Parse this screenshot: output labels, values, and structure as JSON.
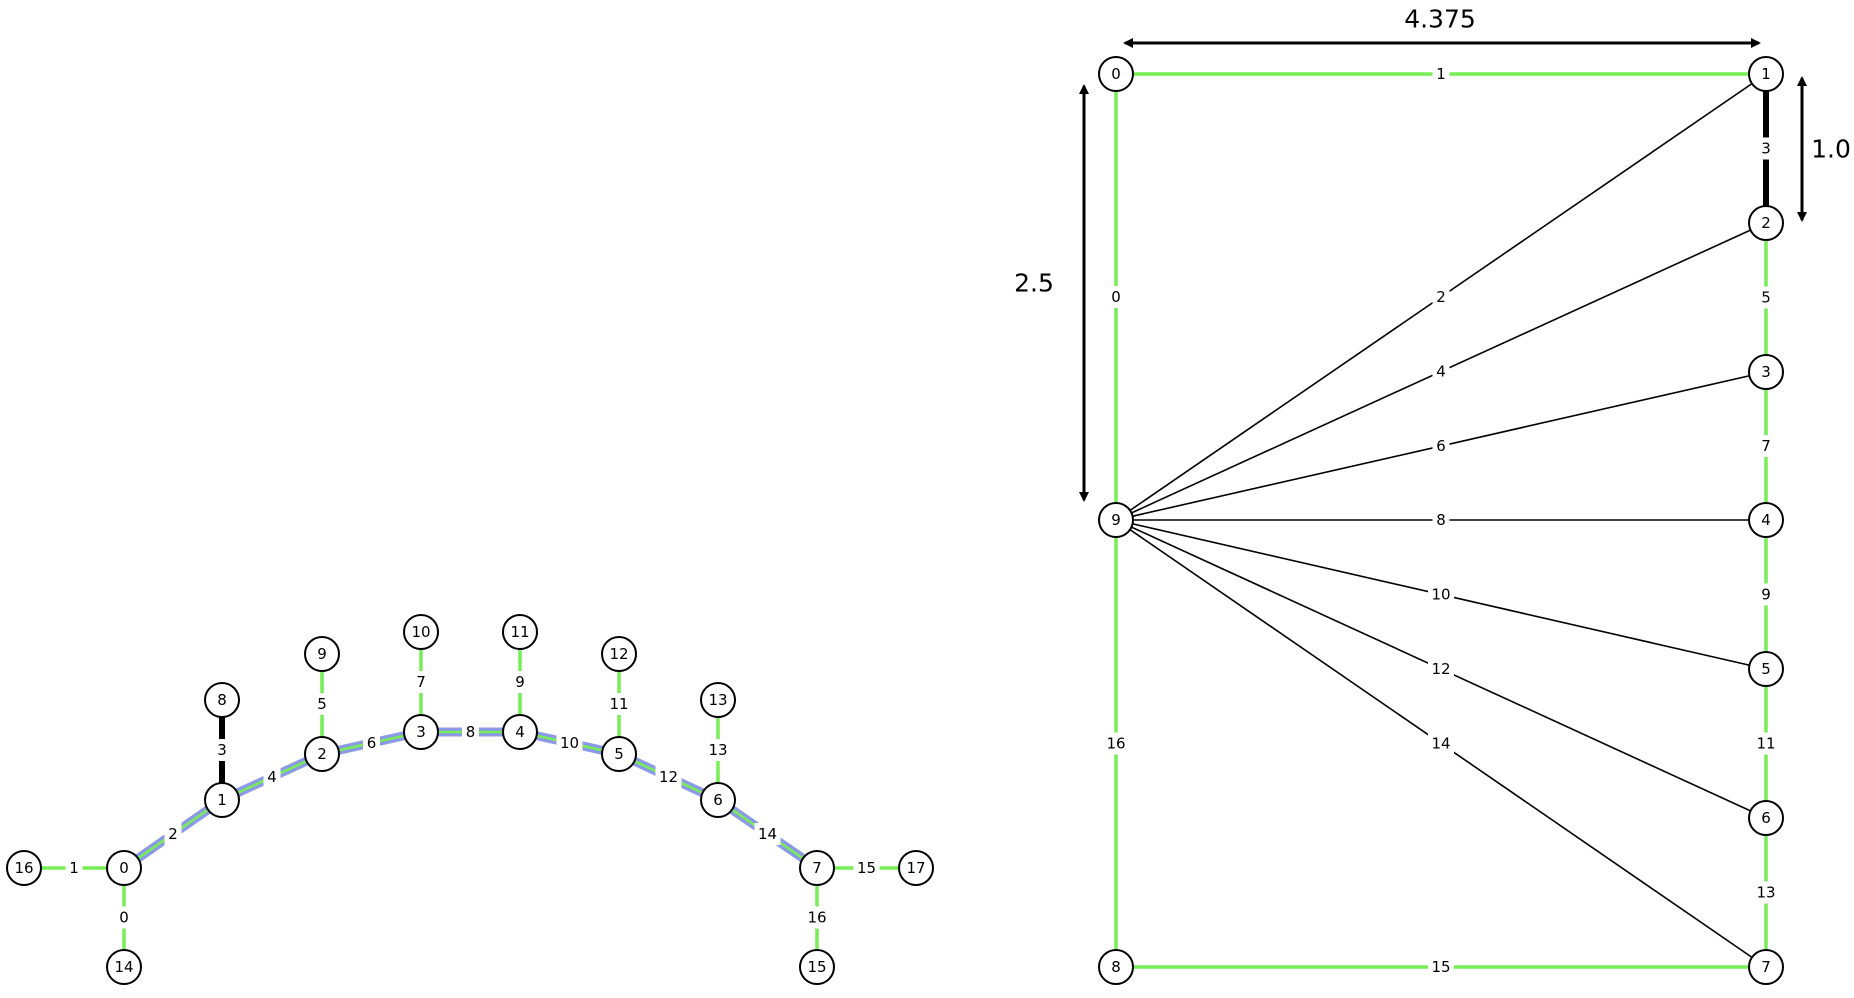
{
  "colors": {
    "green_edge": "#77ee55",
    "black_edge": "#000000",
    "highlight_path": "#6677dd",
    "node_fill": "#ffffff",
    "node_stroke": "#000000"
  },
  "left_graph": {
    "nodes": [
      "0",
      "1",
      "2",
      "3",
      "4",
      "5",
      "6",
      "7",
      "8",
      "9",
      "10",
      "11",
      "12",
      "13",
      "14",
      "15",
      "16",
      "17"
    ],
    "edges": [
      {
        "id": "0",
        "from": "0",
        "to": "14",
        "style": "green"
      },
      {
        "id": "1",
        "from": "16",
        "to": "0",
        "style": "green"
      },
      {
        "id": "2",
        "from": "0",
        "to": "1",
        "style": "path"
      },
      {
        "id": "3",
        "from": "1",
        "to": "8",
        "style": "black-thick"
      },
      {
        "id": "4",
        "from": "1",
        "to": "2",
        "style": "path"
      },
      {
        "id": "5",
        "from": "2",
        "to": "9",
        "style": "green"
      },
      {
        "id": "6",
        "from": "2",
        "to": "3",
        "style": "path"
      },
      {
        "id": "7",
        "from": "3",
        "to": "10",
        "style": "green"
      },
      {
        "id": "8",
        "from": "3",
        "to": "4",
        "style": "path"
      },
      {
        "id": "9",
        "from": "4",
        "to": "11",
        "style": "green"
      },
      {
        "id": "10",
        "from": "4",
        "to": "5",
        "style": "path"
      },
      {
        "id": "11",
        "from": "5",
        "to": "12",
        "style": "green"
      },
      {
        "id": "12",
        "from": "5",
        "to": "6",
        "style": "path"
      },
      {
        "id": "13",
        "from": "6",
        "to": "13",
        "style": "green"
      },
      {
        "id": "14",
        "from": "6",
        "to": "7",
        "style": "path"
      },
      {
        "id": "15",
        "from": "7",
        "to": "17",
        "style": "green"
      },
      {
        "id": "16",
        "from": "7",
        "to": "15",
        "style": "green"
      }
    ]
  },
  "right_graph": {
    "nodes": [
      "0",
      "1",
      "2",
      "3",
      "4",
      "5",
      "6",
      "7",
      "8",
      "9"
    ],
    "edges": [
      {
        "id": "0",
        "from": "0",
        "to": "9",
        "style": "green"
      },
      {
        "id": "1",
        "from": "0",
        "to": "1",
        "style": "green"
      },
      {
        "id": "2",
        "from": "9",
        "to": "1",
        "style": "black"
      },
      {
        "id": "3",
        "from": "1",
        "to": "2",
        "style": "black-thick"
      },
      {
        "id": "4",
        "from": "9",
        "to": "2",
        "style": "black"
      },
      {
        "id": "5",
        "from": "2",
        "to": "3",
        "style": "green"
      },
      {
        "id": "6",
        "from": "9",
        "to": "3",
        "style": "black"
      },
      {
        "id": "7",
        "from": "3",
        "to": "4",
        "style": "green"
      },
      {
        "id": "8",
        "from": "9",
        "to": "4",
        "style": "black"
      },
      {
        "id": "9",
        "from": "4",
        "to": "5",
        "style": "green"
      },
      {
        "id": "10",
        "from": "9",
        "to": "5",
        "style": "black"
      },
      {
        "id": "11",
        "from": "5",
        "to": "6",
        "style": "green"
      },
      {
        "id": "12",
        "from": "9",
        "to": "6",
        "style": "black"
      },
      {
        "id": "13",
        "from": "6",
        "to": "7",
        "style": "green"
      },
      {
        "id": "14",
        "from": "9",
        "to": "7",
        "style": "black"
      },
      {
        "id": "15",
        "from": "8",
        "to": "7",
        "style": "green"
      },
      {
        "id": "16",
        "from": "9",
        "to": "8",
        "style": "green"
      }
    ],
    "dimensions": {
      "width": "4.375",
      "height_left": "2.5",
      "height_right": "1.0"
    }
  }
}
